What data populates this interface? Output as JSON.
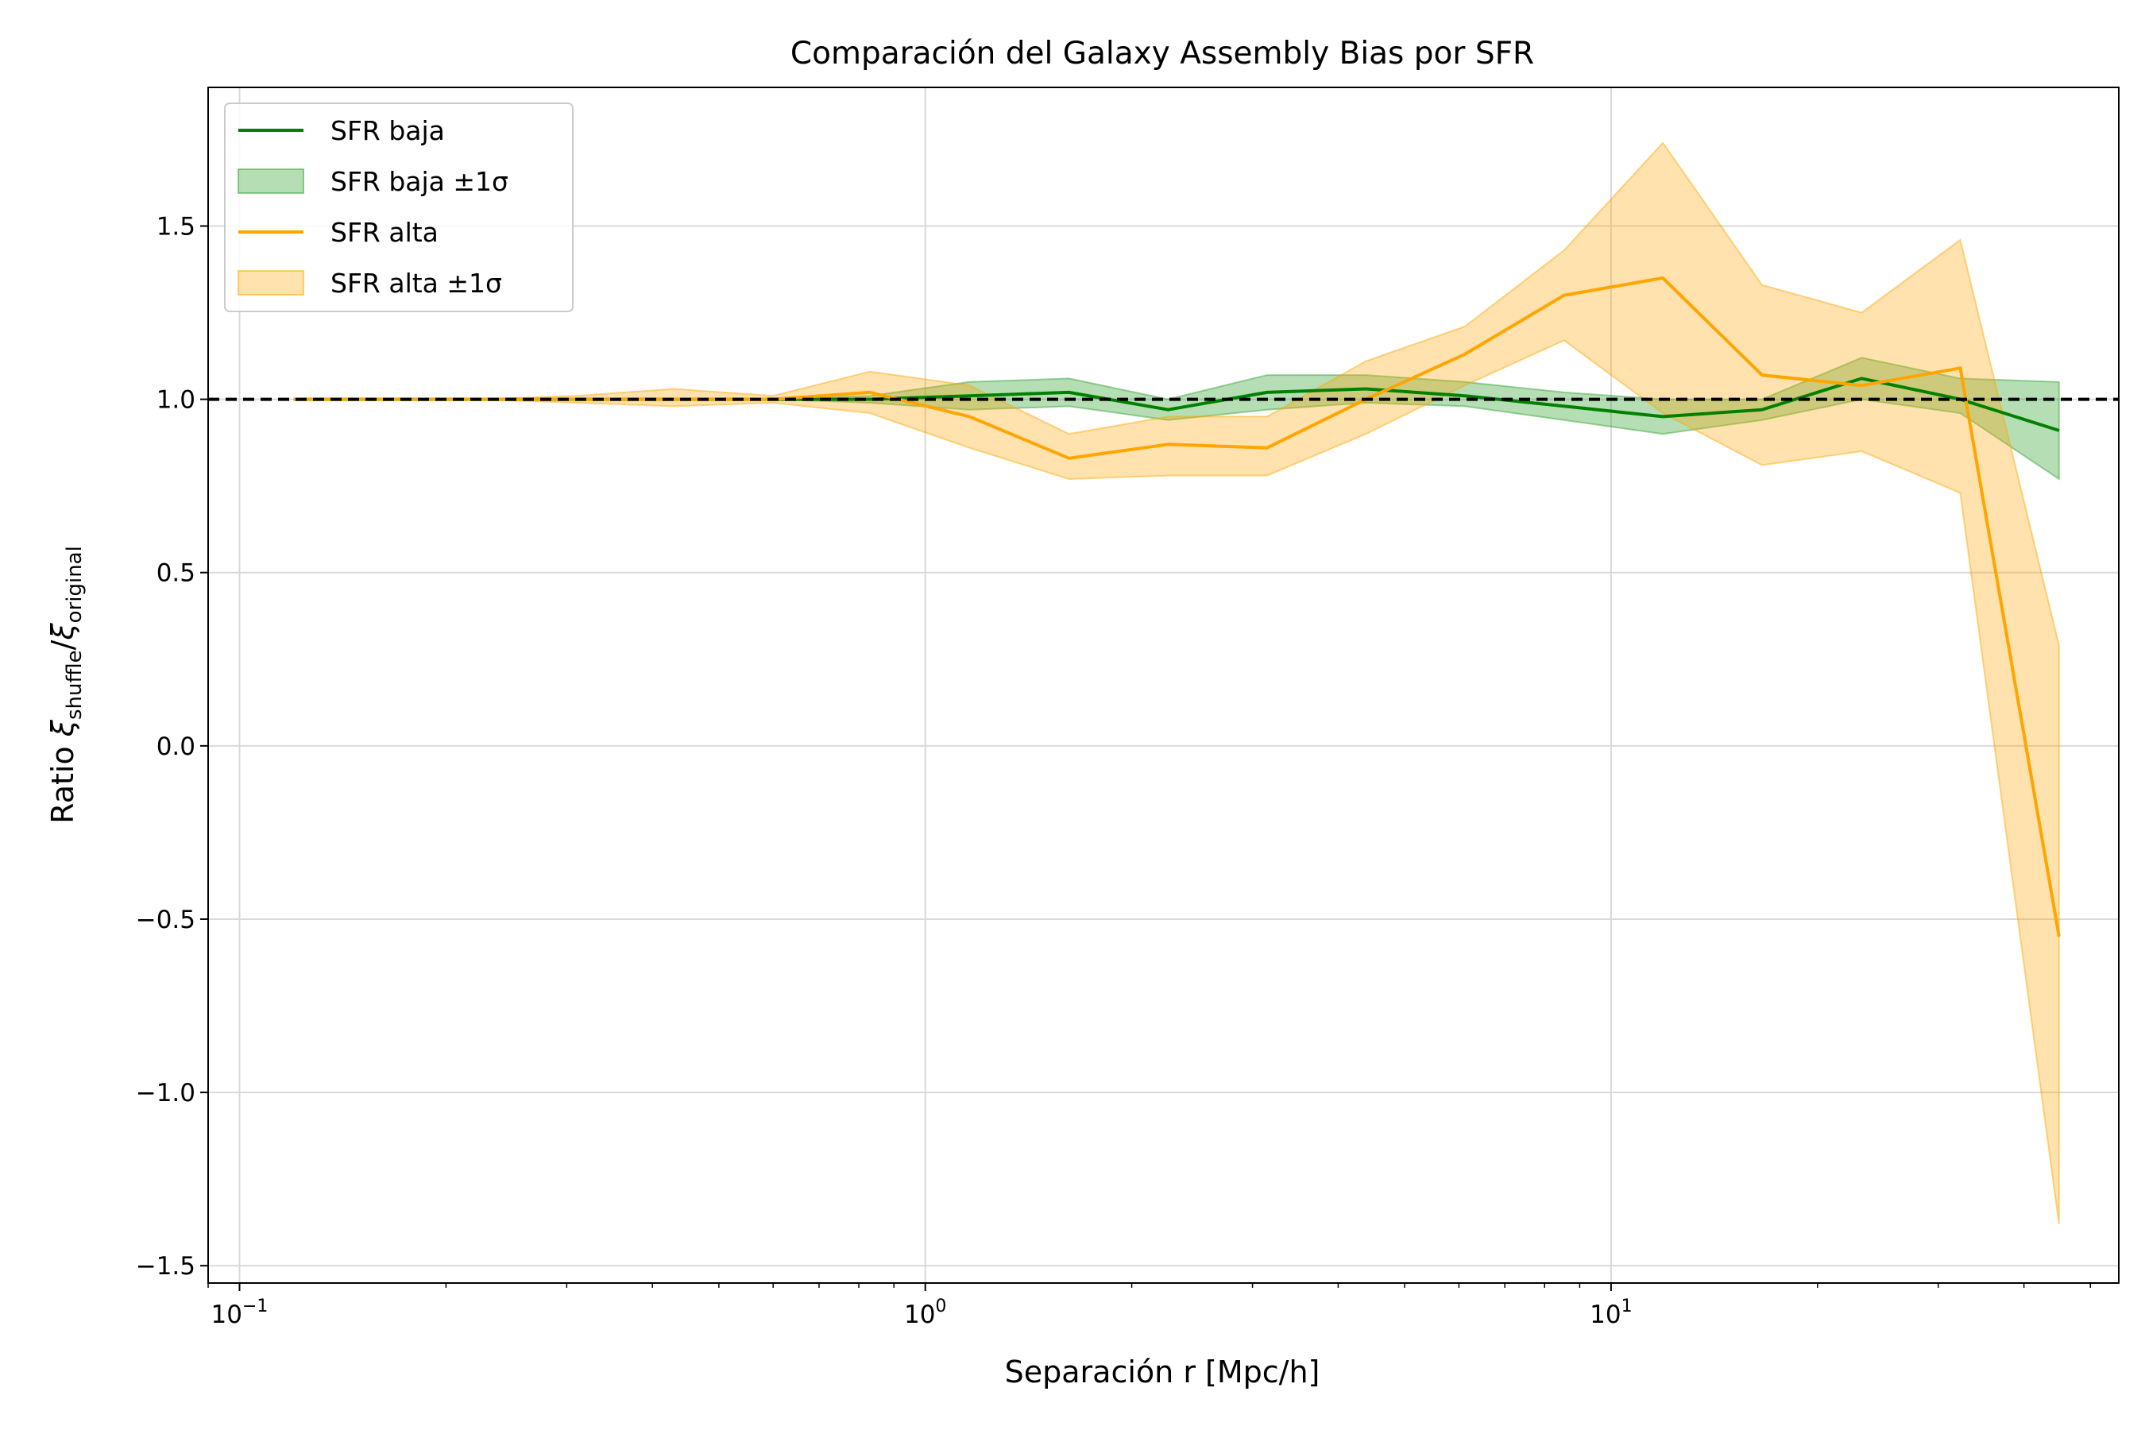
{
  "chart_data": {
    "type": "line",
    "title": "Comparación del Galaxy Assembly Bias por SFR",
    "xlabel": "Separación r [Mpc/h]",
    "ylabel": {
      "prefix": "Ratio ",
      "xi": "ξ",
      "sub1": "shuffle",
      "slash": "/",
      "sub2": "original"
    },
    "xscale": "log",
    "xlim": [
      0.09,
      55
    ],
    "ylim": [
      -1.55,
      1.9
    ],
    "x_ticks": [
      {
        "value": 0.1,
        "base": "10",
        "exp": "−1"
      },
      {
        "value": 1,
        "base": "10",
        "exp": "0"
      },
      {
        "value": 10,
        "base": "10",
        "exp": "1"
      }
    ],
    "y_ticks": [
      {
        "value": -1.5,
        "label": "−1.5"
      },
      {
        "value": -1.0,
        "label": "−1.0"
      },
      {
        "value": -0.5,
        "label": "−0.5"
      },
      {
        "value": 0.0,
        "label": "0.0"
      },
      {
        "value": 0.5,
        "label": "0.5"
      },
      {
        "value": 1.0,
        "label": "1.0"
      },
      {
        "value": 1.5,
        "label": "1.5"
      }
    ],
    "grid": true,
    "legend_position": "top-left",
    "reference_line": {
      "y": 1.0,
      "style": "dashed",
      "color": "#000000"
    },
    "series": [
      {
        "name": "SFR baja",
        "band_name": "SFR baja ±1σ",
        "color": "#008000",
        "band_color": "#2ca02c",
        "x": [
          0.12,
          0.16,
          0.22,
          0.31,
          0.43,
          0.6,
          0.83,
          1.16,
          1.62,
          2.26,
          3.15,
          4.39,
          6.12,
          8.54,
          11.9,
          16.6,
          23.2,
          32.3,
          45.0
        ],
        "y": [
          1.0,
          1.0,
          1.0,
          1.0,
          1.0,
          1.0,
          1.0,
          1.01,
          1.02,
          0.97,
          1.02,
          1.03,
          1.01,
          0.98,
          0.95,
          0.97,
          1.06,
          1.0,
          0.91
        ],
        "lower": [
          1.0,
          1.0,
          1.0,
          1.0,
          1.0,
          1.0,
          0.99,
          0.97,
          0.98,
          0.94,
          0.97,
          0.99,
          0.98,
          0.94,
          0.9,
          0.94,
          1.0,
          0.96,
          0.77
        ],
        "upper": [
          1.0,
          1.0,
          1.0,
          1.0,
          1.0,
          1.0,
          1.01,
          1.05,
          1.06,
          1.0,
          1.07,
          1.07,
          1.05,
          1.02,
          1.0,
          1.0,
          1.12,
          1.06,
          1.05
        ]
      },
      {
        "name": "SFR alta",
        "band_name": "SFR alta ±1σ",
        "color": "#ffa500",
        "band_color": "#ffa500",
        "x": [
          0.12,
          0.16,
          0.22,
          0.31,
          0.43,
          0.6,
          0.83,
          1.16,
          1.62,
          2.26,
          3.15,
          4.39,
          6.12,
          8.54,
          11.9,
          16.6,
          23.2,
          32.3,
          45.0
        ],
        "y": [
          1.0,
          1.0,
          1.0,
          1.0,
          1.0,
          1.0,
          1.02,
          0.95,
          0.83,
          0.87,
          0.86,
          1.0,
          1.13,
          1.3,
          1.35,
          1.07,
          1.04,
          1.09,
          -0.55
        ],
        "lower": [
          1.0,
          1.0,
          1.0,
          0.99,
          0.98,
          0.99,
          0.96,
          0.86,
          0.77,
          0.78,
          0.78,
          0.9,
          1.04,
          1.17,
          0.96,
          0.81,
          0.85,
          0.73,
          -1.38
        ],
        "upper": [
          1.0,
          1.0,
          1.0,
          1.01,
          1.03,
          1.01,
          1.08,
          1.04,
          0.9,
          0.95,
          0.95,
          1.11,
          1.21,
          1.43,
          1.74,
          1.33,
          1.25,
          1.46,
          0.29
        ]
      }
    ]
  }
}
